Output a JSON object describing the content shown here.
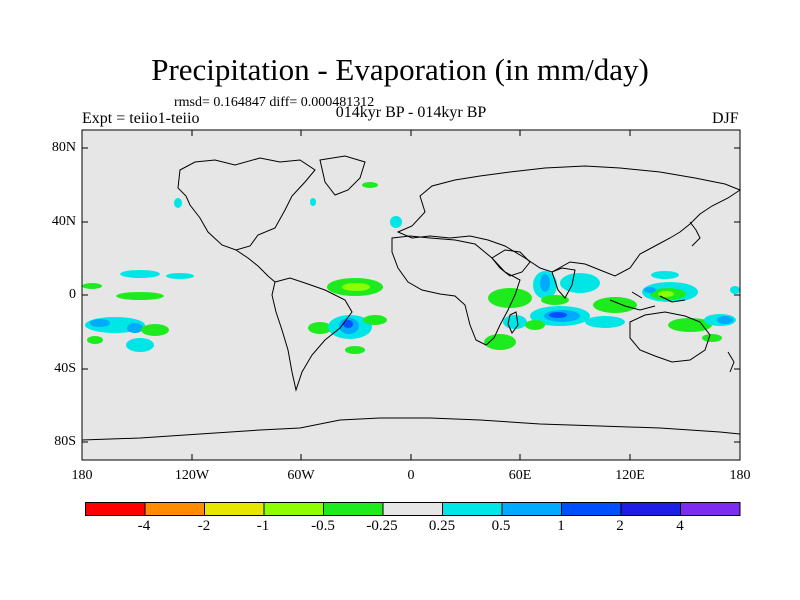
{
  "map": {
    "title": "Precipitation - Evaporation (in mm/day)",
    "stats": "rmsd= 0.164847 diff= 0.000481312",
    "experiment": "Expt = teiio1-teiio",
    "periods": "014kyr BP - 014kyr BP",
    "season": "DJF",
    "lat_ticks": [
      "80N",
      "40N",
      "0",
      "40S",
      "80S"
    ],
    "lon_ticks": [
      "180",
      "120W",
      "60W",
      "0",
      "60E",
      "120E",
      "180"
    ]
  },
  "colorbar": {
    "labels": [
      "-4",
      "-2",
      "-1",
      "-0.5",
      "-0.25",
      "0.25",
      "0.5",
      "1",
      "2",
      "4"
    ],
    "colors": [
      "#ff0000",
      "#ff8c00",
      "#e6e600",
      "#8cff00",
      "#1eeb1e",
      "#e6e6e6",
      "#00e6e6",
      "#00aaff",
      "#0050ff",
      "#1e1ee6",
      "#7d2df0"
    ]
  },
  "colors": {
    "land_ocean_neutral": "#e6e6e6",
    "coastline": "#000000"
  }
}
